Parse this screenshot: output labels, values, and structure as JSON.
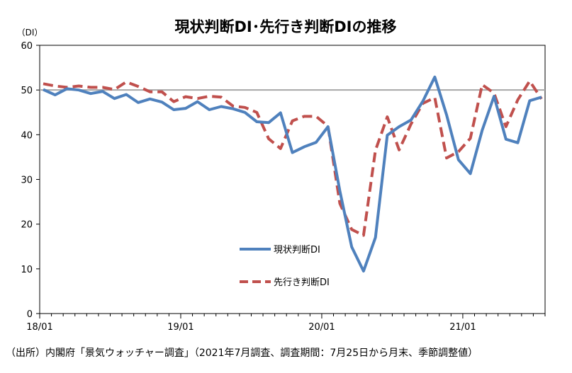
{
  "chart_data": {
    "type": "line",
    "title": "現状判断DI･先行き判断DIの推移",
    "ylabel": "（DI）",
    "ylim": [
      0,
      60
    ],
    "yticks": [
      0,
      10,
      20,
      30,
      40,
      50,
      60
    ],
    "xtick_labels": [
      {
        "index": 0,
        "label": "18/01"
      },
      {
        "index": 12,
        "label": "19/01"
      },
      {
        "index": 24,
        "label": "20/01"
      },
      {
        "index": 36,
        "label": "21/01"
      }
    ],
    "reference_line": 50,
    "grid": false,
    "legend_placement": "center",
    "series": [
      {
        "name": "現状判断DI",
        "color": "#4f81bd",
        "style": "solid",
        "values": [
          50.1,
          48.9,
          50.3,
          50.0,
          49.2,
          49.7,
          48.1,
          49.0,
          47.2,
          48.0,
          47.3,
          45.6,
          45.9,
          47.4,
          45.6,
          46.3,
          45.8,
          45.0,
          42.9,
          42.7,
          44.9,
          36.0,
          37.3,
          38.3,
          41.8,
          27.4,
          14.9,
          9.5,
          17.0,
          39.9,
          41.8,
          43.3,
          47.5,
          52.9,
          44.4,
          34.4,
          31.3,
          41.0,
          48.6,
          39.0,
          38.2,
          47.6,
          48.4
        ]
      },
      {
        "name": "先行き判断DI",
        "color": "#c0504d",
        "style": "dashed",
        "values": [
          51.4,
          50.9,
          50.6,
          50.9,
          50.6,
          50.6,
          50.1,
          51.8,
          50.8,
          49.6,
          49.6,
          47.4,
          48.5,
          48.1,
          48.6,
          48.4,
          46.4,
          46.1,
          45.0,
          39.1,
          36.9,
          43.1,
          44.1,
          44.1,
          41.9,
          24.6,
          18.8,
          17.5,
          36.5,
          44.0,
          36.6,
          42.4,
          47.0,
          48.3,
          34.8,
          36.2,
          39.2,
          51.2,
          49.3,
          41.8,
          47.8,
          52.0,
          48.0
        ]
      }
    ]
  },
  "source_note": "（出所）内閣府「景気ウォッチャー調査」（2021年7月調査、調査期間：7月25日から月末、季節調整値）"
}
